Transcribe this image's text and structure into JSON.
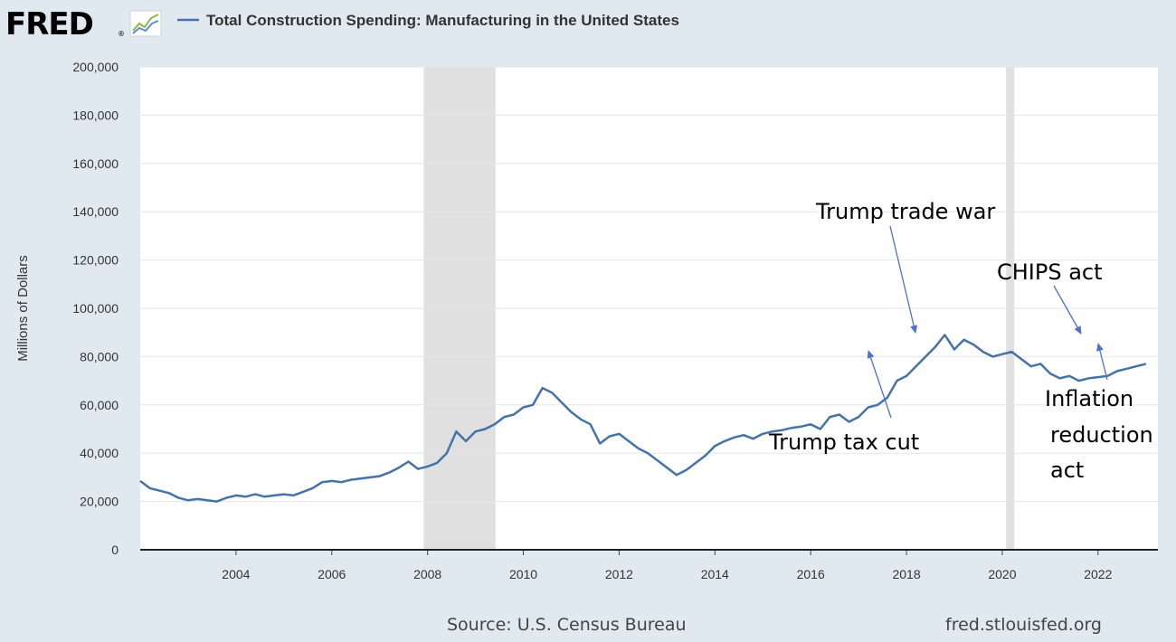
{
  "header": {
    "logo": "FRED",
    "logo_mark": "®",
    "legend_label": "Total Construction Spending: Manufacturing in the United States"
  },
  "footer": {
    "source": "Source: U.S. Census Bureau",
    "site": "fred.stlouisfed.org"
  },
  "colors": {
    "series": "#4572a7",
    "recession": "#e0e0e0",
    "annotation_arrow": "#4a73c8",
    "background": "#e1e9f0",
    "plot_background": "#ffffff"
  },
  "chart_data": {
    "type": "line",
    "title": "Total Construction Spending: Manufacturing in the United States",
    "ylabel": "Millions of Dollars",
    "xlabel": "",
    "ylim": [
      0,
      200000
    ],
    "xlim": [
      2002.0,
      2023.25
    ],
    "grid": true,
    "yticks": [
      0,
      20000,
      40000,
      60000,
      80000,
      100000,
      120000,
      140000,
      160000,
      180000,
      200000
    ],
    "ytick_labels": [
      "0",
      "20,000",
      "40,000",
      "60,000",
      "80,000",
      "100,000",
      "120,000",
      "140,000",
      "160,000",
      "180,000",
      "200,000"
    ],
    "xticks": [
      2004,
      2006,
      2008,
      2010,
      2012,
      2014,
      2016,
      2018,
      2020,
      2022
    ],
    "xtick_labels": [
      "2004",
      "2006",
      "2008",
      "2010",
      "2012",
      "2014",
      "2016",
      "2018",
      "2020",
      "2022"
    ],
    "recessions": [
      [
        2007.92,
        2009.42
      ],
      [
        2020.08,
        2020.25
      ]
    ],
    "series": [
      {
        "points": [
          [
            2002.0,
            28500
          ],
          [
            2002.2,
            25500
          ],
          [
            2002.4,
            24500
          ],
          [
            2002.6,
            23500
          ],
          [
            2002.8,
            21500
          ],
          [
            2003.0,
            20500
          ],
          [
            2003.2,
            21000
          ],
          [
            2003.4,
            20500
          ],
          [
            2003.6,
            20000
          ],
          [
            2003.8,
            21500
          ],
          [
            2004.0,
            22500
          ],
          [
            2004.2,
            22000
          ],
          [
            2004.4,
            23000
          ],
          [
            2004.6,
            22000
          ],
          [
            2004.8,
            22500
          ],
          [
            2005.0,
            23000
          ],
          [
            2005.2,
            22500
          ],
          [
            2005.4,
            24000
          ],
          [
            2005.6,
            25500
          ],
          [
            2005.8,
            28000
          ],
          [
            2006.0,
            28500
          ],
          [
            2006.2,
            28000
          ],
          [
            2006.4,
            29000
          ],
          [
            2006.6,
            29500
          ],
          [
            2006.8,
            30000
          ],
          [
            2007.0,
            30500
          ],
          [
            2007.2,
            32000
          ],
          [
            2007.4,
            34000
          ],
          [
            2007.6,
            36500
          ],
          [
            2007.8,
            33500
          ],
          [
            2008.0,
            34500
          ],
          [
            2008.2,
            36000
          ],
          [
            2008.4,
            40000
          ],
          [
            2008.6,
            49000
          ],
          [
            2008.8,
            45000
          ],
          [
            2009.0,
            49000
          ],
          [
            2009.2,
            50000
          ],
          [
            2009.4,
            52000
          ],
          [
            2009.6,
            55000
          ],
          [
            2009.8,
            56000
          ],
          [
            2010.0,
            59000
          ],
          [
            2010.2,
            60000
          ],
          [
            2010.4,
            67000
          ],
          [
            2010.6,
            65000
          ],
          [
            2010.8,
            61000
          ],
          [
            2011.0,
            57000
          ],
          [
            2011.2,
            54000
          ],
          [
            2011.4,
            52000
          ],
          [
            2011.6,
            44000
          ],
          [
            2011.8,
            47000
          ],
          [
            2012.0,
            48000
          ],
          [
            2012.2,
            45000
          ],
          [
            2012.4,
            42000
          ],
          [
            2012.6,
            40000
          ],
          [
            2012.8,
            37000
          ],
          [
            2013.0,
            34000
          ],
          [
            2013.2,
            31000
          ],
          [
            2013.4,
            33000
          ],
          [
            2013.6,
            36000
          ],
          [
            2013.8,
            39000
          ],
          [
            2014.0,
            43000
          ],
          [
            2014.2,
            45000
          ],
          [
            2014.4,
            46500
          ],
          [
            2014.6,
            47500
          ],
          [
            2014.8,
            46000
          ],
          [
            2015.0,
            48000
          ],
          [
            2015.2,
            49000
          ],
          [
            2015.4,
            49500
          ],
          [
            2015.6,
            50500
          ],
          [
            2015.8,
            51000
          ],
          [
            2016.0,
            52000
          ],
          [
            2016.2,
            50000
          ],
          [
            2016.4,
            55000
          ],
          [
            2016.6,
            56000
          ],
          [
            2016.8,
            53000
          ],
          [
            2017.0,
            55000
          ],
          [
            2017.2,
            59000
          ],
          [
            2017.4,
            60000
          ],
          [
            2017.6,
            63000
          ],
          [
            2017.8,
            70000
          ],
          [
            2018.0,
            72000
          ],
          [
            2018.2,
            76000
          ],
          [
            2018.4,
            80000
          ],
          [
            2018.6,
            84000
          ],
          [
            2018.8,
            89000
          ],
          [
            2019.0,
            83000
          ],
          [
            2019.2,
            87000
          ],
          [
            2019.4,
            85000
          ],
          [
            2019.6,
            82000
          ],
          [
            2019.8,
            80000
          ],
          [
            2020.0,
            81000
          ],
          [
            2020.2,
            82000
          ],
          [
            2020.4,
            79000
          ],
          [
            2020.6,
            76000
          ],
          [
            2020.8,
            77000
          ],
          [
            2021.0,
            73000
          ],
          [
            2021.2,
            71000
          ],
          [
            2021.4,
            72000
          ],
          [
            2021.6,
            70000
          ],
          [
            2021.8,
            71000
          ],
          [
            2022.0,
            71500
          ],
          [
            2022.2,
            72000
          ],
          [
            2022.4,
            74000
          ],
          [
            2022.6,
            75000
          ],
          [
            2022.8,
            76000
          ],
          [
            2023.0,
            77000
          ]
        ]
      }
    ],
    "annotations": [
      {
        "text": "Trump trade war"
      },
      {
        "text": "Trump tax cut"
      },
      {
        "text": "CHIPS act"
      },
      {
        "text": "Inflation"
      },
      {
        "text": "reduction"
      },
      {
        "text": "act"
      }
    ]
  }
}
